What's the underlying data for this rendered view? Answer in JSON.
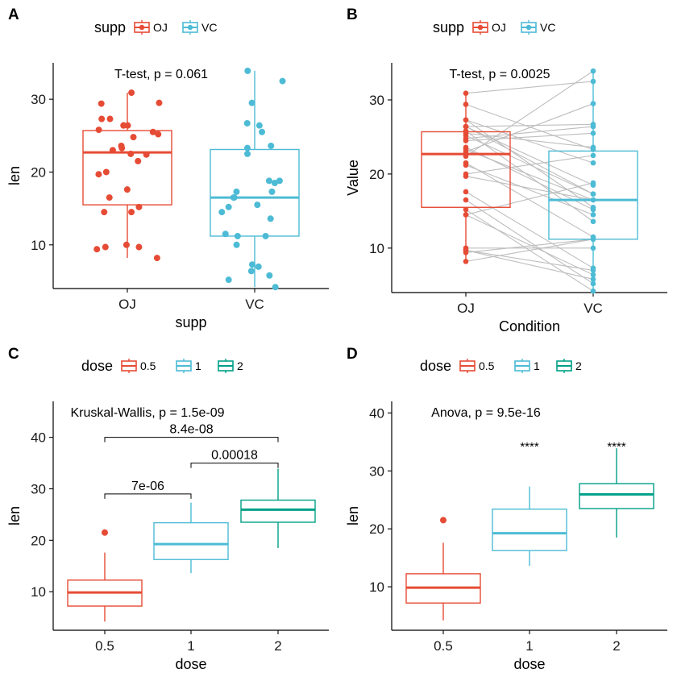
{
  "colors": {
    "red": "#E64B35",
    "cyan": "#4DBBD5",
    "teal": "#00A087",
    "pair_line": "#BEBEBE",
    "axis": "#000000"
  },
  "chart_data": [
    {
      "panel": "A",
      "type": "box",
      "xlabel": "supp",
      "ylabel": "len",
      "categories": [
        "OJ",
        "VC"
      ],
      "ylim": [
        4,
        35
      ],
      "yticks": [
        10,
        20,
        30
      ],
      "legend": {
        "title": "supp",
        "position": "top",
        "labels": [
          "OJ",
          "VC"
        ]
      },
      "annotation": "T-test, p = 0.061",
      "boxes": [
        {
          "group": "OJ",
          "color": "red",
          "q1": 15.5,
          "median": 22.7,
          "q3": 25.7,
          "whisker_low": 8.2,
          "whisker_high": 30.9,
          "outliers": []
        },
        {
          "group": "VC",
          "color": "cyan",
          "q1": 11.2,
          "median": 16.5,
          "q3": 23.1,
          "whisker_low": 4.2,
          "whisker_high": 33.9,
          "outliers": []
        }
      ],
      "points": [
        {
          "group": "OJ",
          "jitter": 0.0,
          "values": [
            30.9,
            29.4,
            27.3,
            26.4,
            26.4,
            25.8,
            25.5,
            24.8,
            23.6,
            23.0,
            22.4,
            21.5,
            19.7,
            17.6,
            16.5,
            15.2,
            14.5,
            14.5,
            10.0,
            9.7,
            9.4,
            8.2,
            29.5,
            27.3,
            26.4,
            25.2,
            20.0,
            23.3,
            22.5,
            9.7
          ]
        },
        {
          "group": "VC",
          "jitter": 0.0,
          "values": [
            33.9,
            32.5,
            29.5,
            26.7,
            26.4,
            25.5,
            23.6,
            23.3,
            22.5,
            18.8,
            18.5,
            17.3,
            16.5,
            16.5,
            15.5,
            15.2,
            14.5,
            13.6,
            11.5,
            11.2,
            10.0,
            7.3,
            7.0,
            6.4,
            5.8,
            5.2,
            4.2,
            11.2,
            17.3,
            18.8
          ]
        }
      ]
    },
    {
      "panel": "B",
      "type": "box-paired",
      "xlabel": "Condition",
      "ylabel": "Value",
      "categories": [
        "OJ",
        "VC"
      ],
      "ylim": [
        4,
        35
      ],
      "yticks": [
        10,
        20,
        30
      ],
      "legend": {
        "title": "supp",
        "position": "top",
        "labels": [
          "OJ",
          "VC"
        ]
      },
      "annotation": "T-test, p = 0.0025",
      "boxes": [
        {
          "group": "OJ",
          "color": "red",
          "q1": 15.5,
          "median": 22.7,
          "q3": 25.7,
          "whisker_low": 8.2,
          "whisker_high": 30.9,
          "outliers": []
        },
        {
          "group": "VC",
          "color": "cyan",
          "q1": 11.2,
          "median": 16.5,
          "q3": 23.1,
          "whisker_low": 4.2,
          "whisker_high": 33.9,
          "outliers": []
        }
      ],
      "pairs": {
        "OJ": [
          15.2,
          21.5,
          17.6,
          9.7,
          14.5,
          10.0,
          8.2,
          9.4,
          16.5,
          9.7,
          19.7,
          23.3,
          23.6,
          26.4,
          20.0,
          25.2,
          25.8,
          21.2,
          14.5,
          27.3,
          25.5,
          26.4,
          22.4,
          24.5,
          24.8,
          30.9,
          26.4,
          27.3,
          29.4,
          23.0
        ],
        "VC": [
          4.2,
          11.5,
          7.3,
          5.8,
          6.4,
          10.0,
          11.2,
          11.2,
          5.2,
          7.0,
          16.5,
          16.5,
          15.2,
          17.3,
          22.5,
          17.3,
          13.6,
          14.5,
          18.8,
          15.5,
          23.6,
          18.5,
          33.9,
          25.5,
          26.4,
          32.5,
          26.7,
          21.5,
          23.3,
          29.5
        ]
      }
    },
    {
      "panel": "C",
      "type": "box",
      "xlabel": "dose",
      "ylabel": "len",
      "categories": [
        "0.5",
        "1",
        "2"
      ],
      "ylim": [
        2.5,
        47
      ],
      "yticks": [
        10,
        20,
        30,
        40
      ],
      "legend": {
        "title": "dose",
        "position": "top",
        "labels": [
          "0.5",
          "1",
          "2"
        ]
      },
      "annotation": "Kruskal-Wallis, p = 1.5e-09",
      "boxes": [
        {
          "group": "0.5",
          "color": "red",
          "q1": 7.2,
          "median": 9.85,
          "q3": 12.25,
          "whisker_low": 4.2,
          "whisker_high": 17.6,
          "outliers": [
            21.5
          ]
        },
        {
          "group": "1",
          "color": "cyan",
          "q1": 16.25,
          "median": 19.25,
          "q3": 23.4,
          "whisker_low": 13.6,
          "whisker_high": 27.3,
          "outliers": []
        },
        {
          "group": "2",
          "color": "teal",
          "q1": 23.5,
          "median": 25.95,
          "q3": 27.8,
          "whisker_low": 18.5,
          "whisker_high": 33.9,
          "outliers": []
        }
      ],
      "brackets": [
        {
          "from": 0,
          "to": 1,
          "y": 29,
          "label": "7e-06"
        },
        {
          "from": 1,
          "to": 2,
          "y": 35,
          "label": "0.00018"
        },
        {
          "from": 0,
          "to": 2,
          "y": 40,
          "label": "8.4e-08"
        }
      ]
    },
    {
      "panel": "D",
      "type": "box",
      "xlabel": "dose",
      "ylabel": "len",
      "categories": [
        "0.5",
        "1",
        "2"
      ],
      "ylim": [
        2.5,
        42
      ],
      "yticks": [
        10,
        20,
        30,
        40
      ],
      "legend": {
        "title": "dose",
        "position": "top",
        "labels": [
          "0.5",
          "1",
          "2"
        ]
      },
      "annotation": "Anova, p = 9.5e-16",
      "boxes": [
        {
          "group": "0.5",
          "color": "red",
          "q1": 7.2,
          "median": 9.85,
          "q3": 12.25,
          "whisker_low": 4.2,
          "whisker_high": 17.6,
          "outliers": [
            21.5
          ]
        },
        {
          "group": "1",
          "color": "cyan",
          "q1": 16.25,
          "median": 19.25,
          "q3": 23.4,
          "whisker_low": 13.6,
          "whisker_high": 27.3,
          "outliers": []
        },
        {
          "group": "2",
          "color": "teal",
          "q1": 23.5,
          "median": 25.95,
          "q3": 27.8,
          "whisker_low": 18.5,
          "whisker_high": 33.9,
          "outliers": []
        }
      ],
      "stars": [
        {
          "group": "1",
          "label": "****",
          "y": 33.5
        },
        {
          "group": "2",
          "label": "****",
          "y": 33.5
        }
      ]
    }
  ]
}
